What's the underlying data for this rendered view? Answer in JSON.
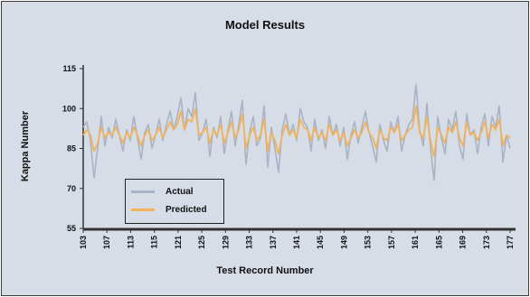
{
  "chart_data": {
    "type": "line",
    "title": "Model Results",
    "xlabel": "Test Record Number",
    "ylabel": "Kappa Number",
    "ylim": [
      55,
      115
    ],
    "yticks": [
      55,
      70,
      85,
      100,
      115
    ],
    "x_tick_labels": [
      "103",
      "107",
      "113",
      "115",
      "121",
      "125",
      "129",
      "133",
      "137",
      "141",
      "145",
      "149",
      "153",
      "157",
      "161",
      "165",
      "169",
      "173",
      "177"
    ],
    "legend_position": "bottom-left",
    "colors": {
      "actual": "#a8b3c5",
      "predicted": "#f2b25c",
      "axis": "#333333",
      "background": "#d6dde7"
    },
    "series": [
      {
        "name": "Actual",
        "values": [
          93,
          95,
          88,
          74,
          85,
          97,
          86,
          93,
          89,
          96,
          90,
          84,
          92,
          88,
          97,
          89,
          81,
          91,
          94,
          85,
          90,
          96,
          88,
          94,
          99,
          92,
          97,
          104,
          92,
          100,
          97,
          106,
          88,
          91,
          96,
          82,
          93,
          89,
          97,
          83,
          92,
          99,
          86,
          94,
          103,
          79,
          91,
          97,
          86,
          89,
          101,
          78,
          93,
          85,
          76,
          92,
          98,
          90,
          94,
          88,
          100,
          95,
          93,
          84,
          96,
          88,
          92,
          85,
          97,
          90,
          94,
          86,
          93,
          81,
          90,
          95,
          87,
          93,
          99,
          91,
          86,
          80,
          94,
          88,
          84,
          95,
          91,
          97,
          84,
          90,
          94,
          96,
          109,
          92,
          86,
          102,
          85,
          73,
          97,
          89,
          83,
          96,
          92,
          99,
          86,
          81,
          98,
          90,
          92,
          83,
          93,
          98,
          86,
          97,
          93,
          101,
          80,
          90,
          85
        ]
      },
      {
        "name": "Predicted",
        "values": [
          90,
          92,
          90,
          84,
          87,
          93,
          89,
          91,
          90,
          93,
          90,
          87,
          91,
          89,
          93,
          90,
          86,
          90,
          92,
          88,
          90,
          93,
          89,
          92,
          95,
          92,
          94,
          99,
          92,
          96,
          95,
          100,
          90,
          91,
          93,
          87,
          92,
          90,
          94,
          87,
          91,
          95,
          89,
          92,
          98,
          85,
          90,
          93,
          88,
          90,
          96,
          84,
          91,
          88,
          83,
          90,
          94,
          90,
          92,
          89,
          96,
          93,
          92,
          88,
          93,
          89,
          91,
          88,
          94,
          90,
          92,
          88,
          91,
          86,
          89,
          92,
          89,
          91,
          95,
          91,
          89,
          85,
          92,
          89,
          88,
          93,
          91,
          94,
          88,
          90,
          92,
          93,
          101,
          91,
          89,
          97,
          88,
          82,
          93,
          90,
          87,
          93,
          91,
          95,
          89,
          86,
          95,
          90,
          91,
          88,
          91,
          95,
          89,
          94,
          92,
          96,
          86,
          90,
          89
        ]
      }
    ]
  }
}
